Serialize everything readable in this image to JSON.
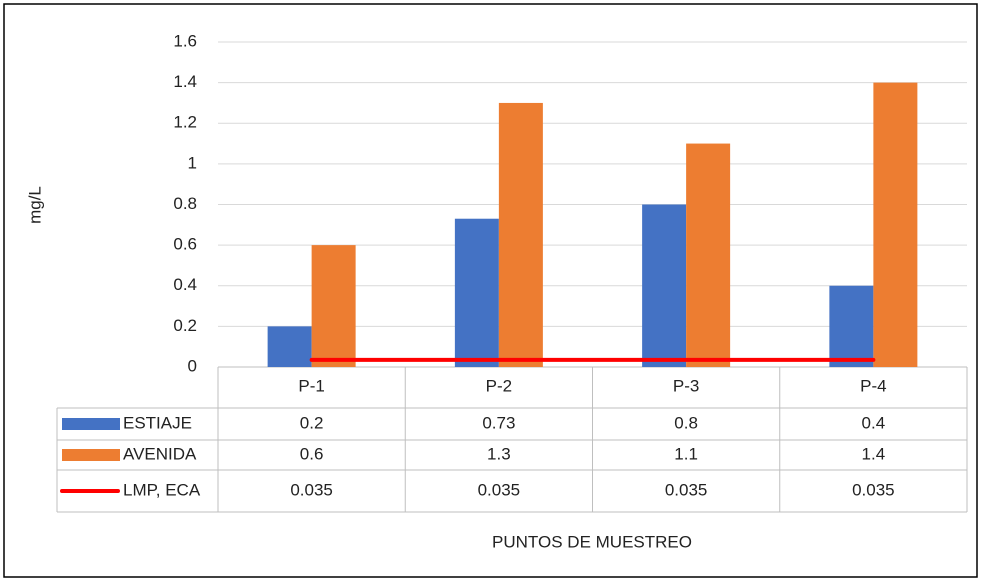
{
  "chart_data": {
    "type": "bar",
    "y_label": "mg/L",
    "x_label": "PUNTOS DE MUESTREO",
    "categories": [
      "P-1",
      "P-2",
      "P-3",
      "P-4"
    ],
    "series": [
      {
        "name": "ESTIAJE",
        "type": "bar",
        "color": "#4472c4",
        "values": [
          0.2,
          0.73,
          0.8,
          0.4
        ]
      },
      {
        "name": "AVENIDA",
        "type": "bar",
        "color": "#ed7d31",
        "values": [
          0.6,
          1.3,
          1.1,
          1.4
        ]
      },
      {
        "name": "LMP, ECA",
        "type": "line",
        "color": "#ff0000",
        "values": [
          0.035,
          0.035,
          0.035,
          0.035
        ]
      }
    ],
    "ylim": [
      0,
      1.6
    ],
    "yticks": [
      0,
      0.2,
      0.4,
      0.6,
      0.8,
      1,
      1.2,
      1.4,
      1.6
    ],
    "grid": true,
    "data_table": true
  }
}
